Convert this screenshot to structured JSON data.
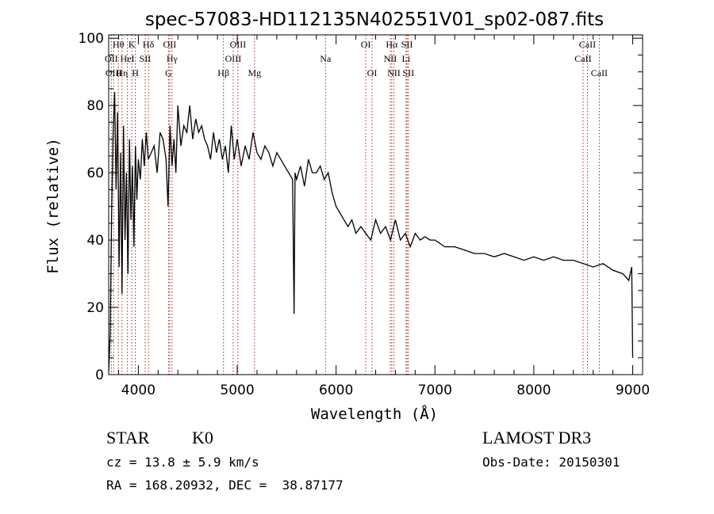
{
  "chart_data": {
    "type": "line",
    "title": "spec-57083-HD112135N402551V01_sp02-087.fits",
    "xlabel": "Wavelength (Å)",
    "ylabel": "Flux (relative)",
    "xlim": [
      3700,
      9100
    ],
    "ylim": [
      0,
      101
    ],
    "xticks": [
      4000,
      5000,
      6000,
      7000,
      8000,
      9000
    ],
    "yticks": [
      0,
      20,
      40,
      60,
      80,
      100
    ],
    "grid": false,
    "series": [
      {
        "name": "flux",
        "x": [
          3700,
          3715,
          3730,
          3745,
          3760,
          3775,
          3790,
          3805,
          3820,
          3835,
          3850,
          3865,
          3880,
          3895,
          3910,
          3925,
          3940,
          3955,
          3970,
          3985,
          4000,
          4020,
          4040,
          4060,
          4080,
          4100,
          4130,
          4160,
          4190,
          4220,
          4250,
          4280,
          4300,
          4320,
          4340,
          4360,
          4380,
          4400,
          4430,
          4460,
          4490,
          4520,
          4550,
          4580,
          4610,
          4640,
          4670,
          4700,
          4730,
          4760,
          4790,
          4820,
          4850,
          4880,
          4910,
          4940,
          4970,
          5000,
          5040,
          5080,
          5120,
          5160,
          5200,
          5240,
          5280,
          5320,
          5360,
          5400,
          5440,
          5480,
          5520,
          5560,
          5575,
          5585,
          5600,
          5640,
          5680,
          5720,
          5760,
          5800,
          5840,
          5880,
          5920,
          5960,
          6000,
          6040,
          6080,
          6120,
          6160,
          6200,
          6250,
          6300,
          6350,
          6400,
          6450,
          6500,
          6550,
          6600,
          6650,
          6700,
          6750,
          6800,
          6850,
          6900,
          6950,
          7000,
          7100,
          7200,
          7300,
          7400,
          7500,
          7600,
          7700,
          7800,
          7900,
          8000,
          8100,
          8200,
          8300,
          8400,
          8500,
          8600,
          8700,
          8800,
          8900,
          8960,
          8990,
          9000
        ],
        "y": [
          1,
          12,
          48,
          72,
          84,
          55,
          78,
          32,
          66,
          24,
          74,
          40,
          60,
          30,
          70,
          46,
          62,
          38,
          68,
          52,
          64,
          58,
          70,
          62,
          72,
          64,
          66,
          68,
          60,
          72,
          70,
          64,
          50,
          74,
          62,
          70,
          60,
          80,
          68,
          74,
          72,
          80,
          70,
          76,
          72,
          74,
          70,
          68,
          64,
          72,
          66,
          70,
          64,
          68,
          60,
          74,
          64,
          70,
          62,
          68,
          64,
          72,
          66,
          64,
          68,
          66,
          62,
          66,
          64,
          62,
          60,
          58,
          18,
          60,
          58,
          62,
          56,
          64,
          60,
          60,
          62,
          58,
          60,
          54,
          50,
          48,
          46,
          44,
          46,
          42,
          44,
          42,
          40,
          46,
          42,
          44,
          40,
          46,
          40,
          42,
          38,
          42,
          40,
          41,
          40,
          40,
          38,
          38,
          37,
          36,
          36,
          35,
          36,
          35,
          34,
          35,
          34,
          35,
          34,
          34,
          33,
          32,
          33,
          31,
          30,
          28,
          32,
          5
        ]
      }
    ],
    "line_labels": [
      {
        "label": "Hθ",
        "x": 3798,
        "row": 0
      },
      {
        "label": "OII",
        "x": 3727,
        "row": 1
      },
      {
        "label": "OIII",
        "x": 3750,
        "row": 2
      },
      {
        "label": "Hη",
        "x": 3835,
        "row": 2
      },
      {
        "label": "HeI",
        "x": 3889,
        "row": 1
      },
      {
        "label": "K",
        "x": 3934,
        "row": 0
      },
      {
        "label": "SII",
        "x": 4069,
        "row": 1
      },
      {
        "label": "H",
        "x": 3969,
        "row": 2
      },
      {
        "label": "Hδ",
        "x": 4102,
        "row": 0
      },
      {
        "label": "OII",
        "x": 4317,
        "row": 0
      },
      {
        "label": "Hγ",
        "x": 4341,
        "row": 1
      },
      {
        "label": "G",
        "x": 4305,
        "row": 2
      },
      {
        "label": "OIII",
        "x": 5007,
        "row": 0
      },
      {
        "label": "OIII",
        "x": 4959,
        "row": 1
      },
      {
        "label": "Hβ",
        "x": 4861,
        "row": 2
      },
      {
        "label": "Mg",
        "x": 5175,
        "row": 2
      },
      {
        "label": "Na",
        "x": 5893,
        "row": 1
      },
      {
        "label": "OI",
        "x": 6300,
        "row": 0
      },
      {
        "label": "OI",
        "x": 6364,
        "row": 2
      },
      {
        "label": "Hα",
        "x": 6563,
        "row": 0
      },
      {
        "label": "NII",
        "x": 6548,
        "row": 1
      },
      {
        "label": "NII",
        "x": 6584,
        "row": 2
      },
      {
        "label": "SII",
        "x": 6717,
        "row": 0
      },
      {
        "label": "Li",
        "x": 6708,
        "row": 1
      },
      {
        "label": "SII",
        "x": 6731,
        "row": 2
      },
      {
        "label": "CaII",
        "x": 8542,
        "row": 0
      },
      {
        "label": "CaII",
        "x": 8498,
        "row": 1
      },
      {
        "label": "CaII",
        "x": 8662,
        "row": 2
      }
    ]
  },
  "footer": {
    "object_class": "STAR",
    "subclass": "K0",
    "survey": "LAMOST DR3",
    "cz": "cz = 13.8 ± 5.9 km/s",
    "obs_date": "Obs-Date: 20150301",
    "coords": "RA = 168.20932, DEC =  38.87177"
  }
}
